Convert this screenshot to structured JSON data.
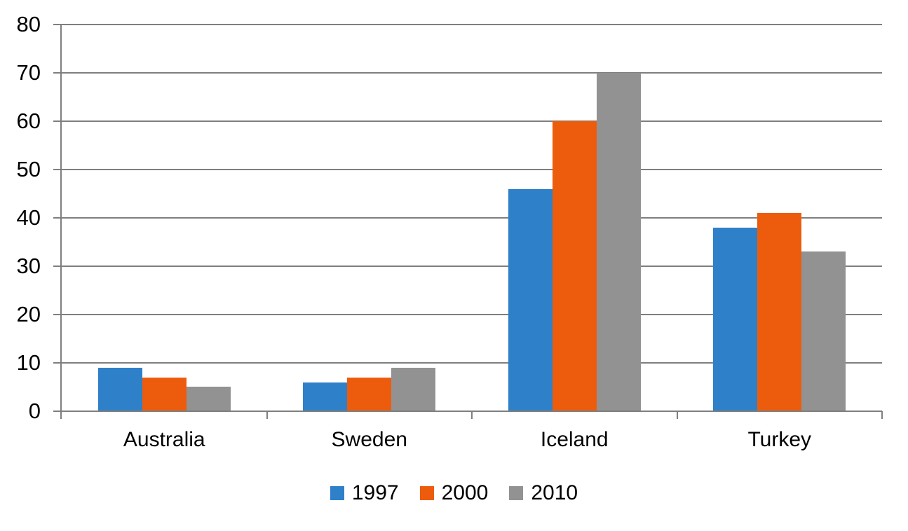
{
  "chart_data": {
    "type": "bar",
    "categories": [
      "Australia",
      "Sweden",
      "Iceland",
      "Turkey"
    ],
    "series": [
      {
        "name": "1997",
        "color": "#2E80C9",
        "values": [
          9,
          6,
          46,
          38
        ]
      },
      {
        "name": "2000",
        "color": "#ED5C0C",
        "values": [
          7,
          7,
          60,
          41
        ]
      },
      {
        "name": "2010",
        "color": "#929292",
        "values": [
          5,
          9,
          70,
          33
        ]
      }
    ],
    "ylim": [
      0,
      80
    ],
    "yticks": [
      0,
      10,
      20,
      30,
      40,
      50,
      60,
      70,
      80
    ],
    "grid": true,
    "legend_position": "bottom",
    "legend": [
      "1997",
      "2000",
      "2010"
    ]
  },
  "colors": {
    "grid": "#7F7F7F",
    "axis": "#7F7F7F",
    "text": "#000000",
    "background": "#FFFFFF"
  }
}
